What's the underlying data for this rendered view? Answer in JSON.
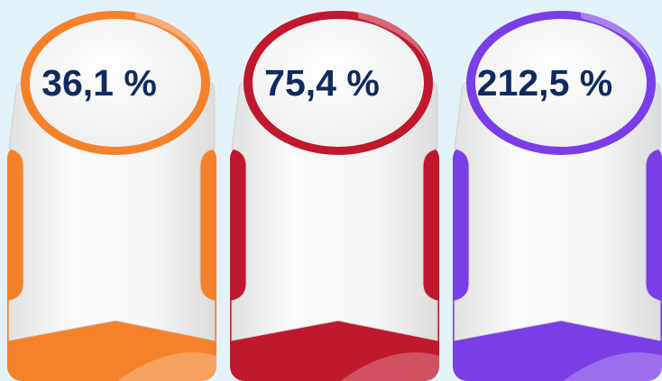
{
  "cards": [
    {
      "label": "36,1 %",
      "color": "#f5822a"
    },
    {
      "label": "75,4 %",
      "color": "#c0182c"
    },
    {
      "label": "212,5 %",
      "color": "#7a3ee6"
    }
  ]
}
